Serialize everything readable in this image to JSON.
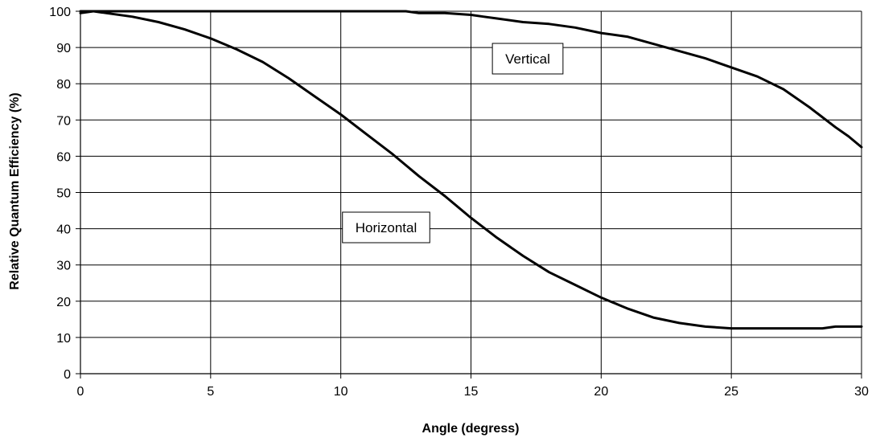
{
  "chart_data": {
    "type": "line",
    "xlabel": "Angle (degress)",
    "ylabel": "Relative Quantum Efficiency (%)",
    "xlim": [
      0,
      30
    ],
    "ylim": [
      0,
      100
    ],
    "xticks": [
      0,
      5,
      10,
      15,
      20,
      25,
      30
    ],
    "yticks": [
      0,
      10,
      20,
      30,
      40,
      50,
      60,
      70,
      80,
      90,
      100
    ],
    "grid": true,
    "series": [
      {
        "name": "Vertical",
        "x": [
          0,
          0.5,
          1,
          2,
          3,
          4,
          5,
          6,
          7,
          8,
          9,
          10,
          11,
          12,
          12.5,
          13,
          14,
          15,
          15.5,
          16,
          17,
          18,
          19,
          20,
          21,
          22,
          22.5,
          23,
          24,
          25,
          26,
          27,
          28,
          29,
          29.5,
          30
        ],
        "y": [
          99.5,
          100,
          100,
          100,
          100,
          100,
          100,
          100,
          100,
          100,
          100,
          100,
          100,
          100,
          100,
          99.5,
          99.5,
          99,
          98.5,
          98,
          97,
          96.5,
          95.5,
          94,
          93,
          91,
          90,
          89,
          87,
          84.5,
          82,
          78.5,
          73.5,
          68,
          65.5,
          62.5
        ]
      },
      {
        "name": "Horizontal",
        "x": [
          0,
          0.5,
          1,
          2,
          3,
          4,
          5,
          6,
          7,
          8,
          9,
          10,
          11,
          12,
          13,
          14,
          15,
          16,
          17,
          18,
          19,
          20,
          21,
          22,
          23,
          24,
          25,
          26,
          27,
          28,
          28.5,
          29,
          30
        ],
        "y": [
          100,
          100,
          99.5,
          98.5,
          97,
          95,
          92.5,
          89.5,
          86,
          81.5,
          76.5,
          71.5,
          66,
          60.5,
          54.5,
          49,
          43,
          37.5,
          32.5,
          28,
          24.5,
          21,
          18,
          15.5,
          14,
          13,
          12.5,
          12.5,
          12.5,
          12.5,
          12.5,
          13,
          13
        ]
      }
    ]
  }
}
